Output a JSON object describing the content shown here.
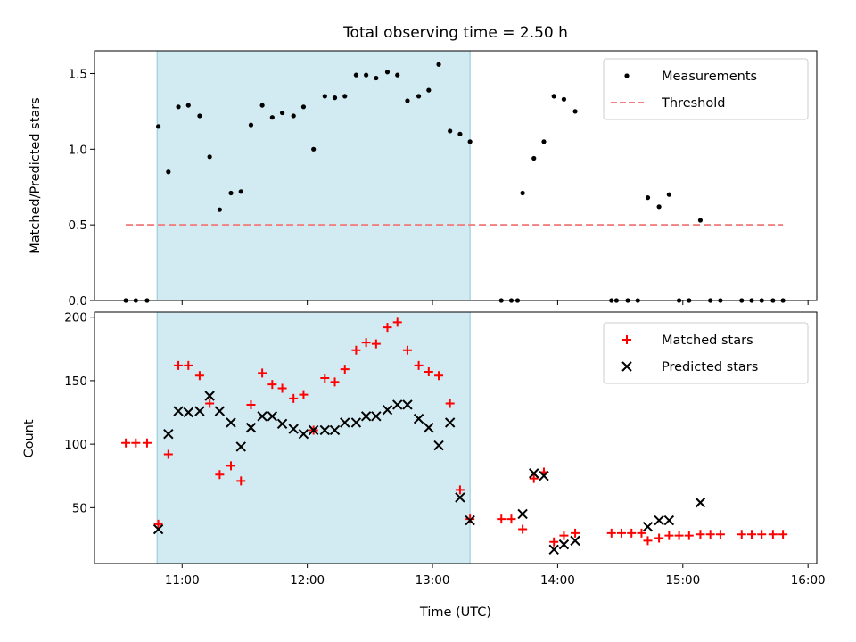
{
  "title": "Total observing time = 2.50 h",
  "colors": {
    "shade": "#add8e6",
    "measure": "#000000",
    "threshold": "#f08080",
    "matched": "#ff0000",
    "predicted": "#000000"
  },
  "chart_data": [
    {
      "type": "scatter",
      "ylabel": "Matched/Predicted stars",
      "xlim": [
        10.3,
        16.07
      ],
      "ylim": [
        0,
        1.65
      ],
      "yticks": [
        0,
        0.5,
        1.0,
        1.5
      ],
      "ytick_labels": [
        "0.0",
        "0.5",
        "1.0",
        "1.5"
      ],
      "xticks": [
        11,
        12,
        13,
        14,
        15,
        16
      ],
      "shaded_span": [
        10.8,
        13.3
      ],
      "legend": {
        "location": "top-right",
        "entries": [
          "Measurements",
          "Threshold"
        ]
      },
      "threshold": {
        "name": "Threshold",
        "value": 0.5,
        "x_range": [
          10.55,
          15.8
        ],
        "style": "dashed"
      },
      "series": [
        {
          "name": "Measurements",
          "marker": "dot",
          "points": [
            [
              10.55,
              0
            ],
            [
              10.63,
              0
            ],
            [
              10.72,
              0
            ],
            [
              10.81,
              1.15
            ],
            [
              10.89,
              0.85
            ],
            [
              10.97,
              1.28
            ],
            [
              11.05,
              1.29
            ],
            [
              11.14,
              1.22
            ],
            [
              11.22,
              0.95
            ],
            [
              11.3,
              0.6
            ],
            [
              11.39,
              0.71
            ],
            [
              11.47,
              0.72
            ],
            [
              11.55,
              1.16
            ],
            [
              11.64,
              1.29
            ],
            [
              11.72,
              1.21
            ],
            [
              11.8,
              1.24
            ],
            [
              11.89,
              1.22
            ],
            [
              11.97,
              1.28
            ],
            [
              12.05,
              1.0
            ],
            [
              12.14,
              1.35
            ],
            [
              12.22,
              1.34
            ],
            [
              12.3,
              1.35
            ],
            [
              12.39,
              1.49
            ],
            [
              12.47,
              1.49
            ],
            [
              12.55,
              1.47
            ],
            [
              12.64,
              1.51
            ],
            [
              12.72,
              1.49
            ],
            [
              12.8,
              1.32
            ],
            [
              12.89,
              1.35
            ],
            [
              12.97,
              1.39
            ],
            [
              13.05,
              1.56
            ],
            [
              13.14,
              1.12
            ],
            [
              13.22,
              1.1
            ],
            [
              13.3,
              1.05
            ],
            [
              13.55,
              0
            ],
            [
              13.63,
              0
            ],
            [
              13.68,
              0
            ],
            [
              13.72,
              0.71
            ],
            [
              13.81,
              0.94
            ],
            [
              13.89,
              1.05
            ],
            [
              13.97,
              1.35
            ],
            [
              14.05,
              1.33
            ],
            [
              14.14,
              1.25
            ],
            [
              14.43,
              0
            ],
            [
              14.47,
              0
            ],
            [
              14.56,
              0
            ],
            [
              14.64,
              0
            ],
            [
              14.72,
              0.68
            ],
            [
              14.81,
              0.62
            ],
            [
              14.89,
              0.7
            ],
            [
              14.97,
              0
            ],
            [
              15.05,
              0
            ],
            [
              15.14,
              0.53
            ],
            [
              15.22,
              0
            ],
            [
              15.3,
              0
            ],
            [
              15.47,
              0
            ],
            [
              15.55,
              0
            ],
            [
              15.63,
              0
            ],
            [
              15.72,
              0
            ],
            [
              15.8,
              0
            ]
          ]
        }
      ]
    },
    {
      "type": "scatter",
      "xlabel": "Time (UTC)",
      "ylabel": "Count",
      "xlim": [
        10.3,
        16.07
      ],
      "ylim": [
        6,
        204
      ],
      "yticks": [
        50,
        100,
        150,
        200
      ],
      "ytick_labels": [
        "50",
        "100",
        "150",
        "200"
      ],
      "xticks": [
        11,
        12,
        13,
        14,
        15,
        16
      ],
      "xtick_labels": [
        "11:00",
        "12:00",
        "13:00",
        "14:00",
        "15:00",
        "16:00"
      ],
      "shaded_span": [
        10.8,
        13.3
      ],
      "legend": {
        "location": "top-right",
        "entries": [
          "Matched stars",
          "Predicted stars"
        ]
      },
      "series": [
        {
          "name": "Matched stars",
          "marker": "plus",
          "points": [
            [
              10.55,
              101
            ],
            [
              10.63,
              101
            ],
            [
              10.72,
              101
            ],
            [
              10.81,
              37
            ],
            [
              10.89,
              92
            ],
            [
              10.97,
              162
            ],
            [
              11.05,
              162
            ],
            [
              11.14,
              154
            ],
            [
              11.22,
              132
            ],
            [
              11.3,
              76
            ],
            [
              11.39,
              83
            ],
            [
              11.47,
              71
            ],
            [
              11.55,
              131
            ],
            [
              11.64,
              156
            ],
            [
              11.72,
              147
            ],
            [
              11.8,
              144
            ],
            [
              11.89,
              136
            ],
            [
              11.97,
              139
            ],
            [
              12.05,
              111
            ],
            [
              12.14,
              152
            ],
            [
              12.22,
              149
            ],
            [
              12.3,
              159
            ],
            [
              12.39,
              174
            ],
            [
              12.47,
              180
            ],
            [
              12.55,
              179
            ],
            [
              12.64,
              192
            ],
            [
              12.72,
              196
            ],
            [
              12.8,
              174
            ],
            [
              12.89,
              162
            ],
            [
              12.97,
              157
            ],
            [
              13.05,
              154
            ],
            [
              13.14,
              132
            ],
            [
              13.22,
              64
            ],
            [
              13.3,
              41
            ],
            [
              13.55,
              41
            ],
            [
              13.63,
              41
            ],
            [
              13.72,
              33
            ],
            [
              13.81,
              73
            ],
            [
              13.89,
              78
            ],
            [
              13.97,
              23
            ],
            [
              14.05,
              28
            ],
            [
              14.14,
              30
            ],
            [
              14.43,
              30
            ],
            [
              14.51,
              30
            ],
            [
              14.59,
              30
            ],
            [
              14.67,
              30
            ],
            [
              14.72,
              24
            ],
            [
              14.81,
              26
            ],
            [
              14.89,
              28
            ],
            [
              14.97,
              28
            ],
            [
              15.05,
              28
            ],
            [
              15.14,
              29
            ],
            [
              15.22,
              29
            ],
            [
              15.3,
              29
            ],
            [
              15.47,
              29
            ],
            [
              15.55,
              29
            ],
            [
              15.63,
              29
            ],
            [
              15.72,
              29
            ],
            [
              15.8,
              29
            ]
          ]
        },
        {
          "name": "Predicted stars",
          "marker": "x",
          "points": [
            [
              10.81,
              33
            ],
            [
              10.89,
              108
            ],
            [
              10.97,
              126
            ],
            [
              11.05,
              125
            ],
            [
              11.14,
              126
            ],
            [
              11.22,
              138
            ],
            [
              11.3,
              126
            ],
            [
              11.39,
              117
            ],
            [
              11.47,
              98
            ],
            [
              11.55,
              113
            ],
            [
              11.64,
              122
            ],
            [
              11.72,
              122
            ],
            [
              11.8,
              116
            ],
            [
              11.89,
              112
            ],
            [
              11.97,
              108
            ],
            [
              12.05,
              111
            ],
            [
              12.14,
              111
            ],
            [
              12.22,
              111
            ],
            [
              12.3,
              117
            ],
            [
              12.39,
              117
            ],
            [
              12.47,
              122
            ],
            [
              12.55,
              122
            ],
            [
              12.64,
              127
            ],
            [
              12.72,
              131
            ],
            [
              12.8,
              131
            ],
            [
              12.89,
              120
            ],
            [
              12.97,
              113
            ],
            [
              13.05,
              99
            ],
            [
              13.14,
              117
            ],
            [
              13.22,
              58
            ],
            [
              13.3,
              40
            ],
            [
              13.72,
              45
            ],
            [
              13.81,
              77
            ],
            [
              13.89,
              75
            ],
            [
              13.97,
              17
            ],
            [
              14.05,
              21
            ],
            [
              14.14,
              24
            ],
            [
              14.72,
              35
            ],
            [
              14.81,
              40
            ],
            [
              14.89,
              40
            ],
            [
              15.14,
              54
            ]
          ]
        }
      ]
    }
  ]
}
